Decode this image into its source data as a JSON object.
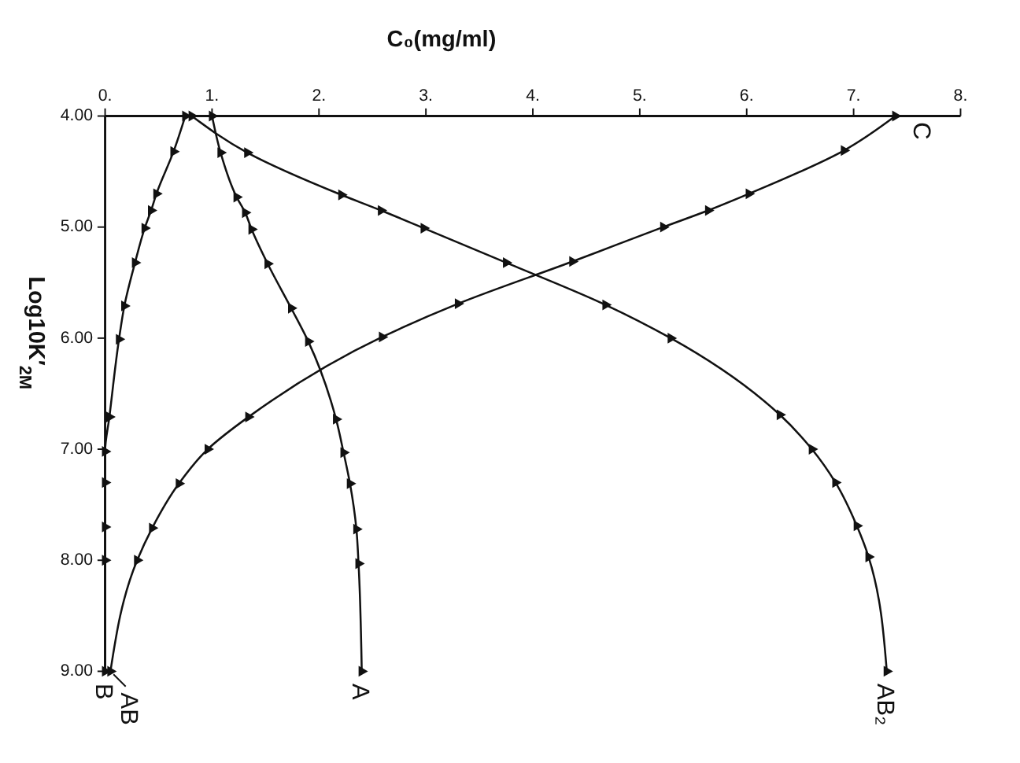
{
  "chart_data": {
    "type": "line",
    "xlabel": "C₀(mg/ml)",
    "ylabel": "Log10K′$_{2M}$",
    "xlim": [
      0,
      8
    ],
    "ylim": [
      9,
      4
    ],
    "xticks": [
      {
        "value": 0,
        "label": "0."
      },
      {
        "value": 1,
        "label": "1."
      },
      {
        "value": 2,
        "label": "2."
      },
      {
        "value": 3,
        "label": "3."
      },
      {
        "value": 4,
        "label": "4."
      },
      {
        "value": 5,
        "label": "5."
      },
      {
        "value": 6,
        "label": "6."
      },
      {
        "value": 7,
        "label": "7."
      },
      {
        "value": 8,
        "label": "8."
      }
    ],
    "yticks": [
      {
        "value": 4,
        "label": "4.00"
      },
      {
        "value": 5,
        "label": "5.00"
      },
      {
        "value": 6,
        "label": "6.00"
      },
      {
        "value": 7,
        "label": "7.00"
      },
      {
        "value": 8,
        "label": "8.00"
      },
      {
        "value": 9,
        "label": "9.00"
      }
    ],
    "marker": "triangle",
    "grid": false,
    "series": [
      {
        "name": "B",
        "color": "#111111",
        "x": [
          0.75,
          0.64,
          0.48,
          0.43,
          0.37,
          0.28,
          0.18,
          0.13,
          0.04,
          0.0,
          0.0,
          0.0,
          0.0,
          0.0
        ],
        "values": [
          4.0,
          4.32,
          4.7,
          4.85,
          5.01,
          5.32,
          5.71,
          6.01,
          6.71,
          7.02,
          7.3,
          7.7,
          8.0,
          9.0
        ]
      },
      {
        "name": "A",
        "color": "#111111",
        "x": [
          1.0,
          1.08,
          1.23,
          1.31,
          1.37,
          1.52,
          1.74,
          1.9,
          2.16,
          2.23,
          2.29,
          2.35,
          2.37,
          2.4
        ],
        "values": [
          4.0,
          4.33,
          4.73,
          4.87,
          5.02,
          5.33,
          5.73,
          6.03,
          6.73,
          7.03,
          7.31,
          7.72,
          8.03,
          9.0
        ]
      },
      {
        "name": "C",
        "color": "#111111",
        "x": [
          7.39,
          6.91,
          6.02,
          5.64,
          5.22,
          4.37,
          3.3,
          2.59,
          1.34,
          0.96,
          0.69,
          0.44,
          0.3,
          0.05
        ],
        "values": [
          4.0,
          4.31,
          4.7,
          4.85,
          5.0,
          5.31,
          5.69,
          5.99,
          6.71,
          7.0,
          7.31,
          7.71,
          8.0,
          9.0
        ]
      },
      {
        "name": "AB₂",
        "color": "#111111",
        "x": [
          0.81,
          1.33,
          2.21,
          2.58,
          2.98,
          3.75,
          4.68,
          5.29,
          6.31,
          6.61,
          6.83,
          7.03,
          7.14,
          7.31
        ],
        "values": [
          4.0,
          4.33,
          4.71,
          4.85,
          5.01,
          5.32,
          5.7,
          6.0,
          6.69,
          7.0,
          7.3,
          7.69,
          7.97,
          9.0
        ]
      }
    ],
    "annotations": [
      {
        "text": "AB",
        "x": 0.05,
        "y": 9
      }
    ]
  }
}
